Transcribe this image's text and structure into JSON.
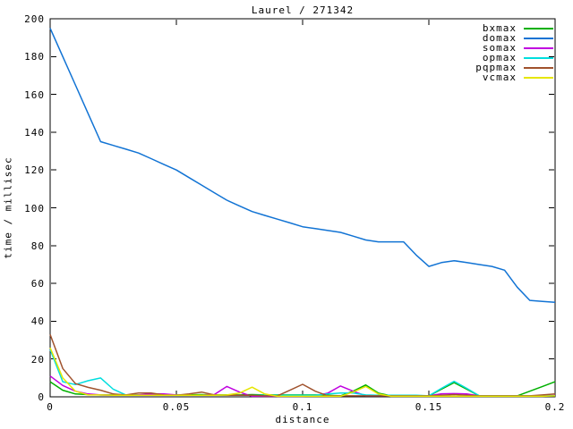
{
  "window": {
    "background": "#ffffff",
    "foreground": "#000000"
  },
  "chart_data": {
    "type": "line",
    "title": "Laurel / 271342",
    "xlabel": "distance",
    "ylabel": "time / millisec",
    "xlim": [
      0,
      0.2
    ],
    "ylim": [
      0,
      200
    ],
    "grid": false,
    "legend_position": "top-right",
    "x_ticks": [
      0,
      0.05,
      0.1,
      0.15,
      0.2
    ],
    "x_tick_labels": [
      "0",
      "0.05",
      "0.1",
      "0.15",
      "0.2"
    ],
    "y_ticks": [
      0,
      20,
      40,
      60,
      80,
      100,
      120,
      140,
      160,
      180,
      200
    ],
    "y_tick_labels": [
      "0",
      "20",
      "40",
      "60",
      "80",
      "100",
      "120",
      "140",
      "160",
      "180",
      "200"
    ],
    "x": [
      0,
      0.005,
      0.01,
      0.015,
      0.02,
      0.025,
      0.03,
      0.035,
      0.04,
      0.045,
      0.05,
      0.055,
      0.06,
      0.065,
      0.07,
      0.075,
      0.08,
      0.085,
      0.09,
      0.095,
      0.1,
      0.105,
      0.11,
      0.115,
      0.12,
      0.125,
      0.13,
      0.135,
      0.14,
      0.145,
      0.15,
      0.155,
      0.16,
      0.165,
      0.17,
      0.175,
      0.18,
      0.185,
      0.19,
      0.195,
      0.2
    ],
    "series": [
      {
        "name": "bxmax",
        "color": "#00b000",
        "values": [
          8,
          3.5,
          1.5,
          1.2,
          1,
          1,
          1,
          1,
          1,
          1,
          1,
          1,
          1.2,
          1,
          1,
          1,
          1.2,
          1,
          1,
          1,
          1,
          1,
          0.8,
          0.5,
          3,
          6.3,
          2,
          0.5,
          0.5,
          0.5,
          0.5,
          4,
          7.5,
          4,
          0.5,
          0.5,
          0.5,
          0.5,
          3,
          5.5,
          8
        ]
      },
      {
        "name": "domax",
        "color": "#1173d4",
        "values": [
          195,
          180,
          165,
          150,
          135,
          133,
          131,
          129,
          126,
          123,
          120,
          116,
          112,
          108,
          104,
          101,
          98,
          96,
          94,
          92,
          90,
          89,
          88,
          87,
          85,
          83,
          82,
          82,
          82,
          75,
          69,
          71,
          72,
          71,
          70,
          69,
          67,
          58,
          51,
          50.5,
          50
        ]
      },
      {
        "name": "somax",
        "color": "#c000e0",
        "values": [
          11,
          6,
          3,
          1.5,
          1,
          0.8,
          0.8,
          1,
          1.5,
          1.5,
          1,
          0.8,
          0.8,
          1.2,
          5.5,
          2.5,
          0.3,
          0.3,
          0.3,
          0.3,
          0.3,
          0.5,
          2,
          5.7,
          3,
          0.5,
          0.5,
          0.5,
          0.5,
          0.5,
          0.5,
          1.6,
          1.7,
          1.5,
          0.5,
          0.5,
          0.5,
          0.5,
          0.5,
          0.5,
          0.7
        ]
      },
      {
        "name": "opmax",
        "color": "#00dede",
        "values": [
          25,
          8,
          6.5,
          8.5,
          10,
          4,
          1,
          0.8,
          0.8,
          0.8,
          0.8,
          0.8,
          0.8,
          0.8,
          0.8,
          0.8,
          0.8,
          0.8,
          0.8,
          0.8,
          0.8,
          0.8,
          1.5,
          2,
          2,
          1,
          0.8,
          0.8,
          0.8,
          0.8,
          0.5,
          4.5,
          8.2,
          4.5,
          0.5,
          0.5,
          0.5,
          0.5,
          0.5,
          0.5,
          0.5
        ]
      },
      {
        "name": "pqpmax",
        "color": "#a0522d",
        "values": [
          33,
          15,
          7,
          5,
          3.5,
          1.5,
          1,
          2,
          2,
          1,
          0.8,
          1.5,
          2.5,
          1,
          0.8,
          0.8,
          0.8,
          0.5,
          0.5,
          3.5,
          6.6,
          3,
          0.5,
          0.5,
          0.5,
          0.5,
          0.5,
          0.5,
          0.5,
          0.5,
          0.5,
          0.8,
          1.2,
          0.8,
          0.5,
          0.5,
          0.5,
          0.5,
          0.5,
          1,
          1.5
        ]
      },
      {
        "name": "vcmax",
        "color": "#e6e600",
        "values": [
          26,
          10,
          3,
          1,
          1,
          0.8,
          0.8,
          0.8,
          0.8,
          0.8,
          0.8,
          0.8,
          0.8,
          0.8,
          1,
          2,
          5.1,
          1.5,
          0.3,
          0.3,
          0.3,
          0.3,
          0.3,
          0.3,
          2.5,
          5.5,
          1.5,
          0.3,
          0.3,
          0.3,
          0.3,
          0.3,
          0.3,
          0.3,
          0.3,
          0.3,
          0.3,
          0.3,
          0.3,
          0.3,
          0.5
        ]
      }
    ]
  },
  "layout_colors": {
    "axis": "#000000"
  }
}
